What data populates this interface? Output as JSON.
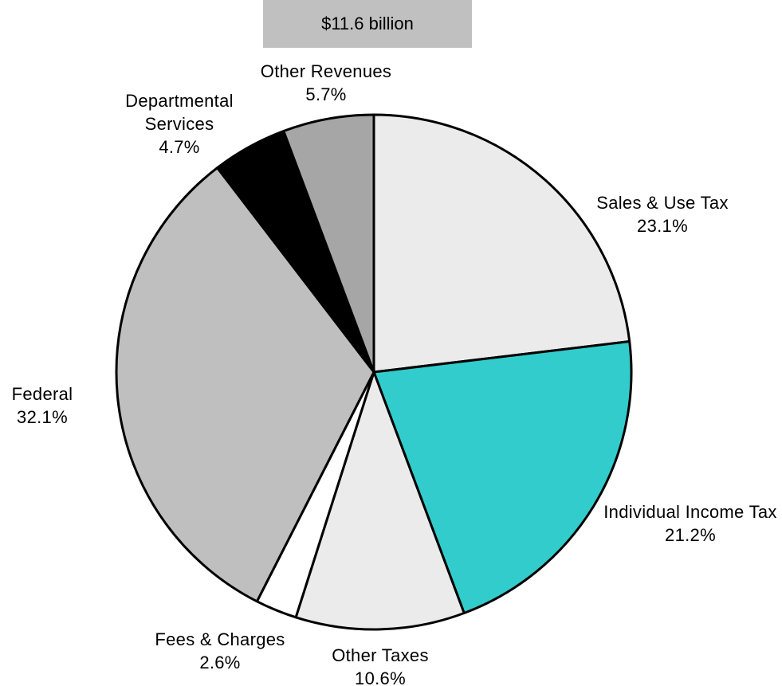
{
  "chart_data": {
    "type": "pie",
    "title": "$11.6 billion",
    "categories": [
      "Sales & Use Tax",
      "Individual Income Tax",
      "Other Taxes",
      "Fees & Charges",
      "Federal",
      "Departmental Services",
      "Other Revenues"
    ],
    "values": [
      23.1,
      21.2,
      10.6,
      2.6,
      32.1,
      4.7,
      5.7
    ],
    "value_labels": [
      "23.1%",
      "21.2%",
      "10.6%",
      "2.6%",
      "32.1%",
      "4.7%",
      "5.7%"
    ],
    "colors": [
      "#ebebeb",
      "#33cccc",
      "#ebebeb",
      "#ffffff",
      "#bfbfbf",
      "#000000",
      "#a6a6a6"
    ]
  }
}
